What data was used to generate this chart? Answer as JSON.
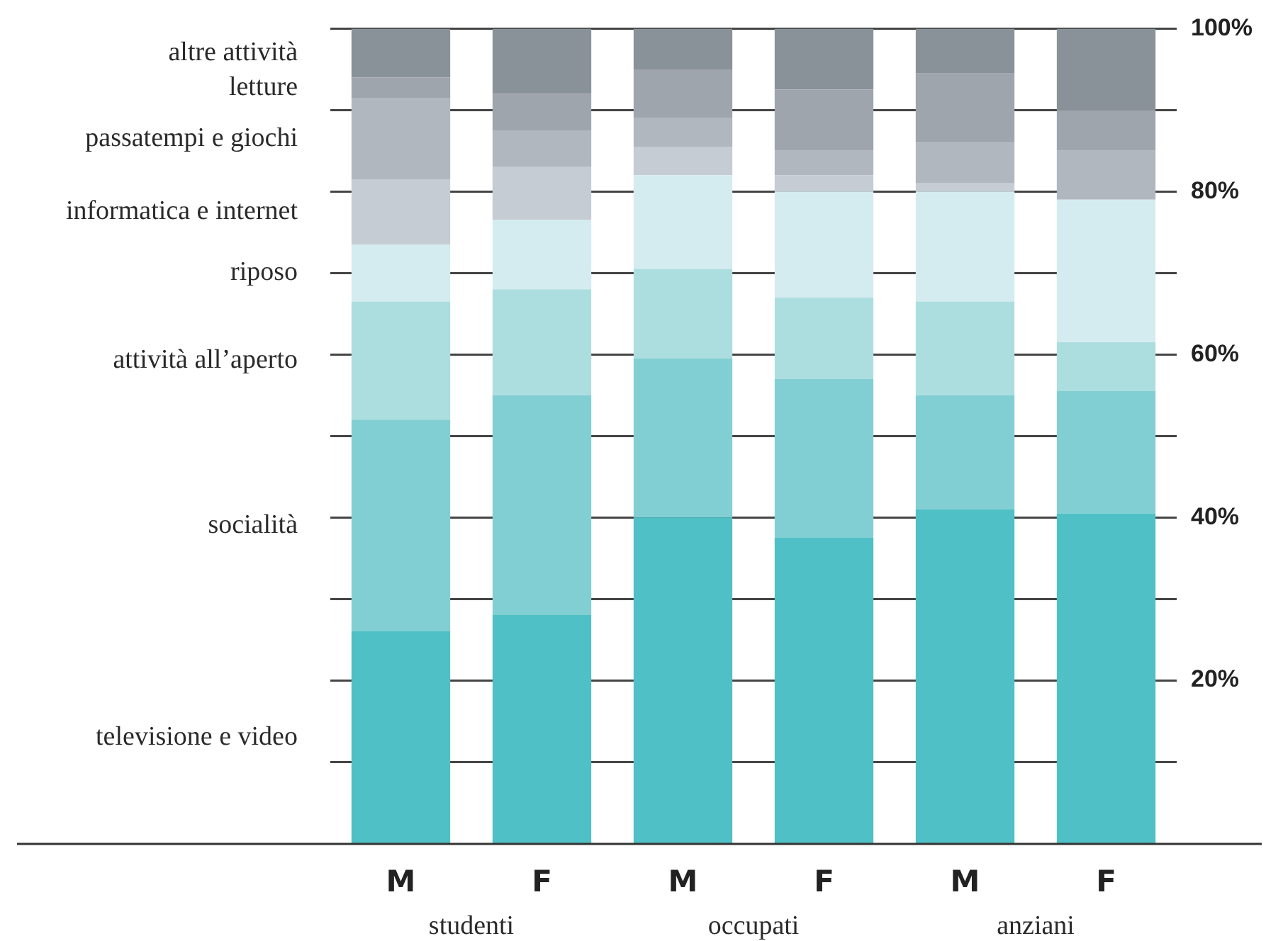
{
  "chart_data": {
    "type": "bar",
    "stacked": true,
    "categories": [
      "M",
      "F",
      "M",
      "F",
      "M",
      "F"
    ],
    "series": [
      {
        "name": "televisione e video",
        "color": "#4fc0c6",
        "values": [
          26,
          28,
          40,
          37.5,
          41,
          40.5
        ]
      },
      {
        "name": "socialità",
        "color": "#82cfd3",
        "values": [
          26,
          27,
          19.5,
          19.5,
          14,
          15
        ]
      },
      {
        "name": "attività all’aperto",
        "color": "#addedf",
        "values": [
          14.5,
          13,
          11,
          10,
          11.5,
          6
        ]
      },
      {
        "name": "riposo",
        "color": "#d4ecf0",
        "values": [
          7,
          8.5,
          11.5,
          13,
          13.5,
          17.5
        ]
      },
      {
        "name": "informatica e internet",
        "color": "#c5ccd3",
        "values": [
          8,
          6.5,
          3.5,
          2,
          1,
          0
        ]
      },
      {
        "name": "passatempi e giochi",
        "color": "#b0b7bf",
        "values": [
          10,
          4.5,
          3.5,
          3,
          5,
          6
        ]
      },
      {
        "name": "letture",
        "color": "#9ea5ac",
        "values": [
          2.5,
          4.5,
          6,
          7.5,
          8.5,
          5
        ]
      },
      {
        "name": "altre attività",
        "color": "#8a9299",
        "values": [
          6,
          8,
          5,
          7.5,
          5.5,
          10
        ]
      }
    ],
    "ylim": [
      0,
      100
    ],
    "yticks": [
      {
        "value": 10,
        "label": null
      },
      {
        "value": 20,
        "label": "20%"
      },
      {
        "value": 30,
        "label": null
      },
      {
        "value": 40,
        "label": "40%"
      },
      {
        "value": 50,
        "label": null
      },
      {
        "value": 60,
        "label": "60%"
      },
      {
        "value": 70,
        "label": null
      },
      {
        "value": 80,
        "label": "80%"
      },
      {
        "value": 90,
        "label": null
      },
      {
        "value": 100,
        "label": "100%"
      }
    ],
    "grid": "y",
    "legend": "left",
    "annotations": [
      "studenti",
      "occupati",
      "anziani"
    ]
  }
}
